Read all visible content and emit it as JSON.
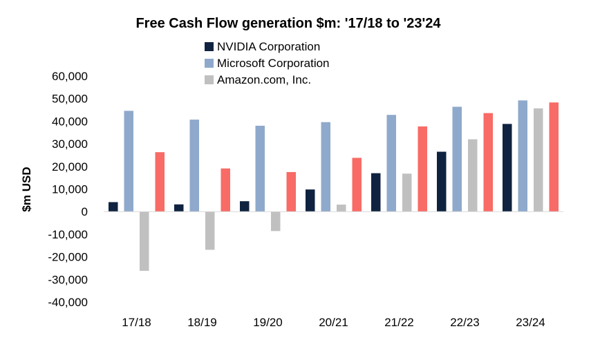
{
  "chart_data": {
    "type": "bar",
    "title": "Free Cash Flow generation $m: '17/18 to '23'24",
    "xlabel": "",
    "ylabel": "$m USD",
    "ylim": [
      -40000,
      60000
    ],
    "yticks": [
      60000,
      50000,
      40000,
      30000,
      20000,
      10000,
      0,
      -10000,
      -20000,
      -30000,
      -40000
    ],
    "ytick_labels": [
      "60,000",
      "50,000",
      "40,000",
      "30,000",
      "20,000",
      "10,000",
      "0",
      "-10,000",
      "-20,000",
      "-30,000",
      "-40,000"
    ],
    "categories": [
      "17/18",
      "18/19",
      "19/20",
      "20/21",
      "21/22",
      "22/23",
      "23/24"
    ],
    "legend_position": "top-center",
    "grid": false,
    "series": [
      {
        "name": "NVIDIA Corporation",
        "color": "#0f2340",
        "values": [
          4200,
          3200,
          4600,
          9800,
          17000,
          26500,
          38800
        ],
        "in_legend": true
      },
      {
        "name": "Microsoft Corporation",
        "color": "#8ea9cb",
        "values": [
          44600,
          40700,
          38000,
          39600,
          42800,
          46400,
          49200
        ],
        "in_legend": true
      },
      {
        "name": "Amazon.com, Inc.",
        "color": "#c0c0c0",
        "values": [
          -26200,
          -16900,
          -8600,
          3100,
          16800,
          32000,
          45700
        ],
        "in_legend": true
      },
      {
        "name": "",
        "color": "#f86b66",
        "values": [
          26300,
          19100,
          17500,
          23800,
          37700,
          43600,
          48300
        ],
        "in_legend": false
      }
    ]
  }
}
